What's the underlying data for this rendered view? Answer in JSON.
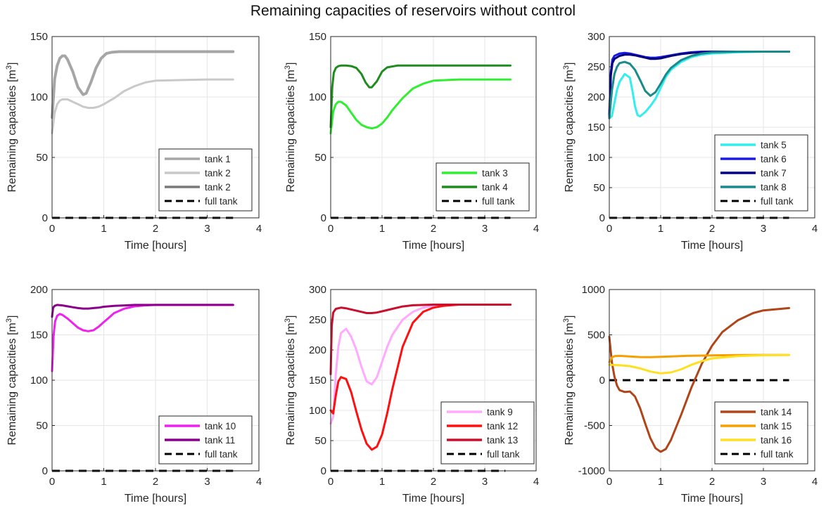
{
  "figure_title": "Remaining capacities of reservoirs without control",
  "chart_data": [
    {
      "type": "line",
      "xlabel": "Time [hours]",
      "ylabel": "Remaining capacities [m",
      "ylabel_sup": "3",
      "ylabel_suffix": "]",
      "xlim": [
        0,
        4
      ],
      "ylim": [
        0,
        150
      ],
      "xticks": [
        "0",
        "1",
        "2",
        "3",
        "4"
      ],
      "yticks": [
        "0",
        "50",
        "100",
        "150"
      ],
      "grid": true,
      "legend_position": "bottom-right",
      "series": [
        {
          "name": "tank 1",
          "color": "#a6a6a6",
          "width": 4,
          "x": [
            0,
            0.05,
            0.1,
            0.15,
            0.2,
            0.25,
            0.3,
            0.4,
            0.5,
            0.6,
            0.66,
            0.75,
            0.85,
            0.95,
            1.05,
            1.15,
            1.3,
            1.5,
            2.0,
            2.5,
            3.0,
            3.5
          ],
          "y": [
            83,
            115,
            126,
            132,
            134,
            134,
            131,
            121,
            108,
            102,
            103,
            112,
            124,
            132,
            136,
            137,
            137.5,
            137.5,
            137.5,
            137.5,
            137.5,
            137.5
          ]
        },
        {
          "name": "tank 2",
          "color": "#c9c9c9",
          "width": 3,
          "x": [
            0,
            0.05,
            0.1,
            0.15,
            0.2,
            0.3,
            0.4,
            0.5,
            0.6,
            0.7,
            0.8,
            0.9,
            1.0,
            1.2,
            1.4,
            1.6,
            1.8,
            2.0,
            2.5,
            3.0,
            3.5
          ],
          "y": [
            70,
            87,
            94,
            97,
            98,
            98,
            96,
            94,
            92,
            91,
            91,
            92,
            94,
            99,
            105,
            109,
            112,
            113.5,
            114,
            114.5,
            114.5
          ]
        },
        {
          "name": "tank 2",
          "color": "#7a7a7a",
          "width": 2,
          "legend_only": true
        }
      ],
      "full_tank": {
        "name": "full tank",
        "y": 0,
        "x": [
          0,
          3.5
        ],
        "color": "#000000"
      }
    },
    {
      "type": "line",
      "xlabel": "Time [hours]",
      "ylabel": "Remaining capacities [m",
      "ylabel_sup": "3",
      "ylabel_suffix": "]",
      "xlim": [
        0,
        4
      ],
      "ylim": [
        0,
        150
      ],
      "xticks": [
        "0",
        "1",
        "2",
        "3",
        "4"
      ],
      "yticks": [
        "0",
        "50",
        "100",
        "150"
      ],
      "grid": true,
      "legend_position": "bottom-right",
      "series": [
        {
          "name": "tank 3",
          "color": "#32ee32",
          "width": 3,
          "x": [
            0,
            0.05,
            0.1,
            0.15,
            0.2,
            0.3,
            0.4,
            0.5,
            0.6,
            0.7,
            0.8,
            0.9,
            1.0,
            1.1,
            1.2,
            1.4,
            1.6,
            1.8,
            2.0,
            2.5,
            3.0,
            3.5
          ],
          "y": [
            70,
            88,
            94,
            96,
            96,
            93,
            87,
            81,
            77,
            75,
            74,
            75,
            78,
            83,
            89,
            99,
            107,
            111,
            113.5,
            114.5,
            114.5,
            114.5
          ]
        },
        {
          "name": "tank 4",
          "color": "#1e8c1e",
          "width": 3,
          "x": [
            0,
            0.03,
            0.06,
            0.1,
            0.15,
            0.2,
            0.3,
            0.4,
            0.5,
            0.6,
            0.68,
            0.75,
            0.8,
            0.9,
            1.0,
            1.1,
            1.3,
            1.5,
            2.0,
            2.5,
            3.0,
            3.5
          ],
          "y": [
            75,
            108,
            120,
            124,
            125.5,
            126,
            126,
            125.5,
            124,
            119,
            112,
            108,
            108,
            113,
            121,
            124.5,
            126,
            126,
            126,
            126,
            126,
            126
          ]
        }
      ],
      "full_tank": {
        "name": "full tank",
        "y": 0,
        "x": [
          0,
          3.5
        ],
        "color": "#000000"
      }
    },
    {
      "type": "line",
      "xlabel": "Time [hours]",
      "ylabel": "Remaining capacities [m",
      "ylabel_sup": "3",
      "ylabel_suffix": "]",
      "xlim": [
        0,
        4
      ],
      "ylim": [
        0,
        300
      ],
      "xticks": [
        "0",
        "1",
        "2",
        "3",
        "4"
      ],
      "yticks": [
        "0",
        "50",
        "100",
        "150",
        "200",
        "250",
        "300"
      ],
      "grid": true,
      "legend_position": "bottom-right",
      "series": [
        {
          "name": "tank 5",
          "color": "#33eeee",
          "width": 3,
          "x": [
            0,
            0.05,
            0.1,
            0.15,
            0.2,
            0.3,
            0.4,
            0.45,
            0.5,
            0.55,
            0.6,
            0.7,
            0.8,
            0.9,
            1.0,
            1.1,
            1.2,
            1.4,
            1.6,
            1.8,
            2.0,
            2.5,
            3.0,
            3.5
          ],
          "y": [
            165,
            168,
            190,
            212,
            225,
            238,
            232,
            210,
            185,
            170,
            168,
            175,
            185,
            197,
            215,
            233,
            245,
            258,
            266,
            270,
            272,
            274,
            275,
            275
          ]
        },
        {
          "name": "tank 6",
          "color": "#1a1ae0",
          "width": 3,
          "x": [
            0,
            0.03,
            0.06,
            0.1,
            0.2,
            0.3,
            0.4,
            0.5,
            0.6,
            0.7,
            0.8,
            0.9,
            1.0,
            1.2,
            1.4,
            1.6,
            1.8,
            2.0,
            2.5,
            3.0,
            3.5
          ],
          "y": [
            170,
            240,
            262,
            268,
            272,
            273,
            272,
            270,
            268,
            266,
            265,
            265,
            266,
            269,
            272,
            274,
            275,
            275,
            275,
            275,
            275
          ]
        },
        {
          "name": "tank 7",
          "color": "#000080",
          "width": 3,
          "x": [
            0,
            0.03,
            0.06,
            0.1,
            0.2,
            0.3,
            0.4,
            0.5,
            0.6,
            0.7,
            0.8,
            0.9,
            1.0,
            1.2,
            1.4,
            1.6,
            1.8,
            2.0,
            2.5,
            3.0,
            3.5
          ],
          "y": [
            165,
            236,
            256,
            263,
            268,
            270,
            270,
            269,
            267,
            265,
            263,
            263,
            264,
            268,
            271,
            273,
            274,
            275,
            275,
            275,
            275
          ]
        },
        {
          "name": "tank 8",
          "color": "#1a8a8a",
          "width": 3,
          "x": [
            0,
            0.05,
            0.1,
            0.15,
            0.2,
            0.3,
            0.4,
            0.5,
            0.6,
            0.7,
            0.8,
            0.9,
            1.0,
            1.1,
            1.2,
            1.4,
            1.6,
            1.8,
            2.0,
            2.5,
            3.0,
            3.5
          ],
          "y": [
            165,
            210,
            238,
            250,
            256,
            258,
            255,
            245,
            228,
            210,
            202,
            208,
            222,
            237,
            248,
            261,
            268,
            272,
            274,
            275,
            275,
            275
          ]
        }
      ],
      "full_tank": {
        "name": "full tank",
        "y": 0,
        "x": [
          0,
          3.5
        ],
        "color": "#000000"
      }
    },
    {
      "type": "line",
      "xlabel": "Time [hours]",
      "ylabel": "Remaining capacities [m",
      "ylabel_sup": "3",
      "ylabel_suffix": "]",
      "xlim": [
        0,
        4
      ],
      "ylim": [
        0,
        200
      ],
      "xticks": [
        "0",
        "1",
        "2",
        "3",
        "4"
      ],
      "yticks": [
        "0",
        "50",
        "100",
        "150",
        "200"
      ],
      "grid": true,
      "legend_position": "bottom-right",
      "series": [
        {
          "name": "tank 10",
          "color": "#ee22ee",
          "width": 3,
          "x": [
            0,
            0.03,
            0.06,
            0.1,
            0.15,
            0.2,
            0.3,
            0.4,
            0.5,
            0.6,
            0.7,
            0.8,
            0.9,
            1.0,
            1.1,
            1.2,
            1.4,
            1.6,
            1.8,
            2.0,
            2.5,
            3.0,
            3.5
          ],
          "y": [
            110,
            150,
            165,
            171,
            173,
            172,
            168,
            163,
            158,
            155,
            154,
            155,
            159,
            164,
            169,
            174,
            179,
            181.5,
            182.5,
            183,
            183,
            183,
            183
          ]
        },
        {
          "name": "tank 11",
          "color": "#8b008b",
          "width": 3,
          "x": [
            0,
            0.02,
            0.05,
            0.1,
            0.2,
            0.3,
            0.4,
            0.5,
            0.6,
            0.7,
            0.8,
            0.9,
            1.0,
            1.2,
            1.4,
            1.6,
            2.0,
            2.5,
            3.0,
            3.5
          ],
          "y": [
            170,
            180,
            182,
            183,
            182.5,
            181.5,
            180.5,
            179.5,
            179,
            179,
            179.5,
            180,
            181,
            182,
            182.5,
            183,
            183,
            183,
            183,
            183
          ]
        }
      ],
      "full_tank": {
        "name": "full tank",
        "y": 0,
        "x": [
          0,
          3.5
        ],
        "color": "#000000"
      }
    },
    {
      "type": "line",
      "xlabel": "Time [hours]",
      "ylabel": "Remaining capacities [m",
      "ylabel_sup": "3",
      "ylabel_suffix": "]",
      "xlim": [
        0,
        4
      ],
      "ylim": [
        0,
        300
      ],
      "xticks": [
        "0",
        "1",
        "2",
        "3",
        "4"
      ],
      "yticks": [
        "0",
        "50",
        "100",
        "150",
        "200",
        "250",
        "300"
      ],
      "grid": true,
      "legend_position": "bottom-left",
      "series": [
        {
          "name": "tank 9",
          "color": "#ffaaff",
          "width": 3,
          "x": [
            0,
            0.05,
            0.1,
            0.15,
            0.2,
            0.3,
            0.4,
            0.5,
            0.6,
            0.7,
            0.8,
            0.9,
            1.0,
            1.1,
            1.2,
            1.4,
            1.6,
            1.8,
            2.0,
            2.2,
            2.5,
            3.0,
            3.5
          ],
          "y": [
            78,
            90,
            160,
            205,
            228,
            235,
            222,
            200,
            172,
            148,
            143,
            155,
            180,
            205,
            225,
            250,
            263,
            270,
            273,
            275,
            275,
            275,
            275
          ]
        },
        {
          "name": "tank 12",
          "color": "#ff1010",
          "width": 3,
          "x": [
            0,
            0.05,
            0.1,
            0.15,
            0.2,
            0.3,
            0.4,
            0.5,
            0.6,
            0.7,
            0.8,
            0.9,
            1.0,
            1.1,
            1.2,
            1.3,
            1.4,
            1.6,
            1.8,
            2.0,
            2.2,
            2.5,
            3.0,
            3.5
          ],
          "y": [
            100,
            95,
            125,
            148,
            155,
            152,
            130,
            98,
            68,
            45,
            35,
            40,
            60,
            95,
            135,
            170,
            205,
            245,
            263,
            270,
            273,
            275,
            275,
            275
          ]
        },
        {
          "name": "tank 13",
          "color": "#c8102e",
          "width": 3,
          "x": [
            0,
            0.02,
            0.05,
            0.1,
            0.2,
            0.3,
            0.4,
            0.5,
            0.6,
            0.7,
            0.8,
            0.9,
            1.0,
            1.2,
            1.4,
            1.6,
            2.0,
            2.5,
            3.0,
            3.5
          ],
          "y": [
            160,
            240,
            262,
            268,
            270,
            269,
            267,
            265,
            263,
            261,
            261,
            262,
            264,
            268,
            272,
            274,
            275,
            275,
            275,
            275
          ]
        }
      ],
      "full_tank": {
        "name": "full tank",
        "y": 0,
        "x": [
          0,
          3.4
        ],
        "color": "#000000"
      }
    },
    {
      "type": "line",
      "xlabel": "Time [hours]",
      "ylabel": "Remaining capacities [m",
      "ylabel_sup": "3",
      "ylabel_suffix": "]",
      "xlim": [
        0,
        4
      ],
      "ylim": [
        -1000,
        1000
      ],
      "xticks": [
        "0",
        "1",
        "2",
        "3",
        "4"
      ],
      "yticks": [
        "-1000",
        "-500",
        "0",
        "500",
        "1000"
      ],
      "grid": true,
      "legend_position": "bottom-right",
      "series": [
        {
          "name": "tank 14",
          "color": "#b0451a",
          "width": 3,
          "x": [
            0,
            0.05,
            0.1,
            0.15,
            0.2,
            0.3,
            0.4,
            0.5,
            0.6,
            0.7,
            0.8,
            0.9,
            1.0,
            1.1,
            1.2,
            1.4,
            1.6,
            1.8,
            2.0,
            2.2,
            2.5,
            2.8,
            3.0,
            3.5
          ],
          "y": [
            480,
            200,
            40,
            -60,
            -110,
            -130,
            -125,
            -180,
            -310,
            -480,
            -640,
            -750,
            -790,
            -760,
            -660,
            -380,
            -80,
            180,
            380,
            530,
            660,
            740,
            770,
            795
          ]
        },
        {
          "name": "tank 15",
          "color": "#f5a000",
          "width": 3,
          "x": [
            0,
            0.05,
            0.1,
            0.2,
            0.4,
            0.6,
            0.8,
            1.0,
            1.2,
            1.5,
            2.0,
            2.5,
            3.0,
            3.5
          ],
          "y": [
            200,
            250,
            265,
            268,
            262,
            255,
            254,
            257,
            262,
            268,
            274,
            277,
            278,
            278
          ]
        },
        {
          "name": "tank 16",
          "color": "#ffe020",
          "width": 3,
          "x": [
            0,
            0.05,
            0.1,
            0.2,
            0.4,
            0.6,
            0.8,
            1.0,
            1.2,
            1.4,
            1.6,
            1.8,
            2.0,
            2.5,
            3.0,
            3.5
          ],
          "y": [
            170,
            168,
            168,
            165,
            155,
            130,
            95,
            75,
            85,
            120,
            170,
            210,
            240,
            265,
            275,
            278
          ]
        }
      ],
      "full_tank": {
        "name": "full tank",
        "y": 0,
        "x": [
          0,
          3.5
        ],
        "color": "#000000"
      }
    }
  ]
}
